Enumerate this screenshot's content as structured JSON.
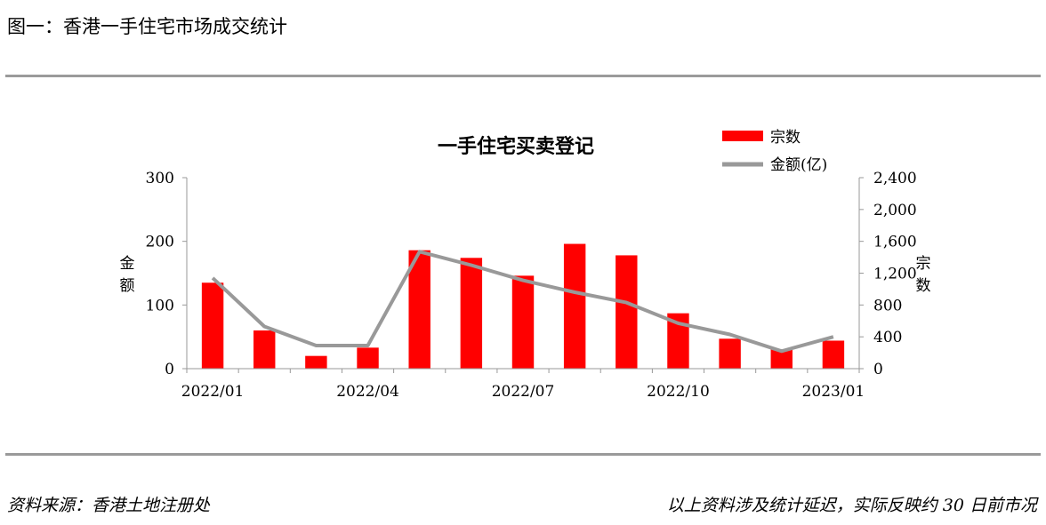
{
  "figure_title": "图一：香港一手住宅市场成交统计",
  "footer": {
    "source": "资料来源：香港土地注册处",
    "note": "以上资料涉及统计延迟，实际反映约 30 日前市况"
  },
  "chart_data": {
    "type": "bar",
    "title": "一手住宅买卖登记",
    "categories": [
      "2022/01",
      "2022/02",
      "2022/03",
      "2022/04",
      "2022/05",
      "2022/06",
      "2022/07",
      "2022/08",
      "2022/09",
      "2022/10",
      "2022/11",
      "2022/12",
      "2023/01"
    ],
    "x_tick_labels": [
      "2022/01",
      "2022/04",
      "2022/07",
      "2022/10",
      "2023/01"
    ],
    "y_left": {
      "label": "金额",
      "ticks": [
        "0",
        "100",
        "200",
        "300"
      ],
      "range": [
        0,
        300
      ]
    },
    "y_right": {
      "label": "宗数",
      "ticks": [
        "0",
        "400",
        "800",
        "1,200",
        "1,600",
        "2,000",
        "2,400"
      ],
      "range": [
        0,
        2400
      ]
    },
    "series": [
      {
        "name": "宗数",
        "type": "bar",
        "axis": "left",
        "color": "#ff0000",
        "values": [
          135,
          60,
          20,
          33,
          186,
          174,
          146,
          196,
          178,
          87,
          47,
          30,
          44
        ]
      },
      {
        "name": "金额(亿)",
        "type": "line",
        "axis": "right",
        "color": "#999999",
        "values": [
          1140,
          530,
          290,
          290,
          1470,
          1300,
          1110,
          960,
          830,
          570,
          430,
          220,
          400
        ]
      }
    ],
    "legend_position": "top-right",
    "grid": false
  }
}
